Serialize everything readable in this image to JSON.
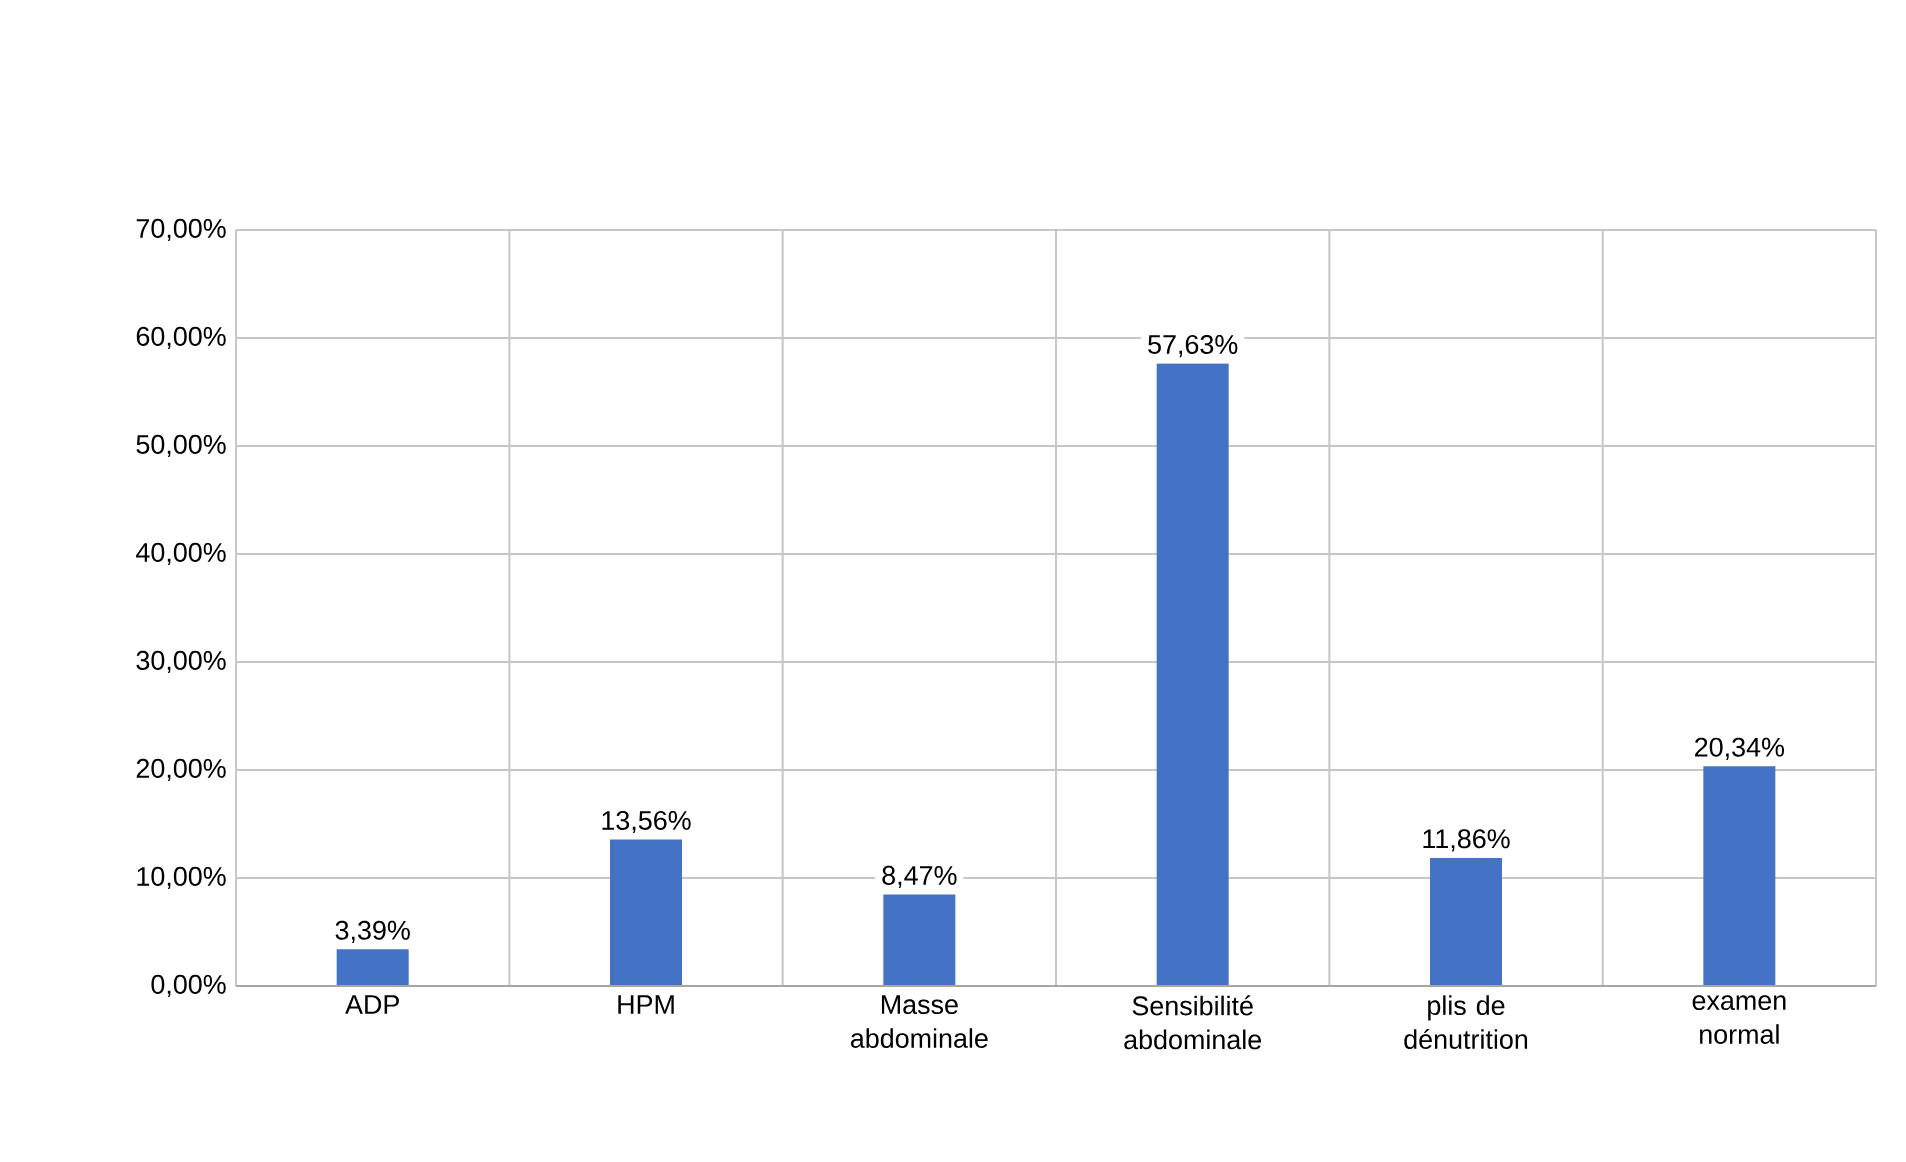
{
  "chart_data": {
    "type": "bar",
    "categories": [
      "ADP",
      "HPM",
      "Masse abdominale",
      "Sensibilité abdominale",
      "plis de dénutrition",
      "examen normal"
    ],
    "values": [
      3.39,
      13.56,
      8.47,
      57.63,
      11.86,
      20.34
    ],
    "value_labels": [
      "3,39%",
      "13,56%",
      "8,47%",
      "57,63%",
      "11,86%",
      "20,34%"
    ],
    "color": "#4472c4",
    "ylim": [
      0,
      70
    ],
    "yticks": [
      {
        "value": 0,
        "label": "0,00%"
      },
      {
        "value": 10,
        "label": "10,00%"
      },
      {
        "value": 20,
        "label": "20,00%"
      },
      {
        "value": 30,
        "label": "30,00%"
      },
      {
        "value": 40,
        "label": "40,00%"
      },
      {
        "value": 50,
        "label": "50,00%"
      },
      {
        "value": 60,
        "label": "60,00%"
      },
      {
        "value": 70,
        "label": "70,00%"
      }
    ],
    "grid": true
  }
}
